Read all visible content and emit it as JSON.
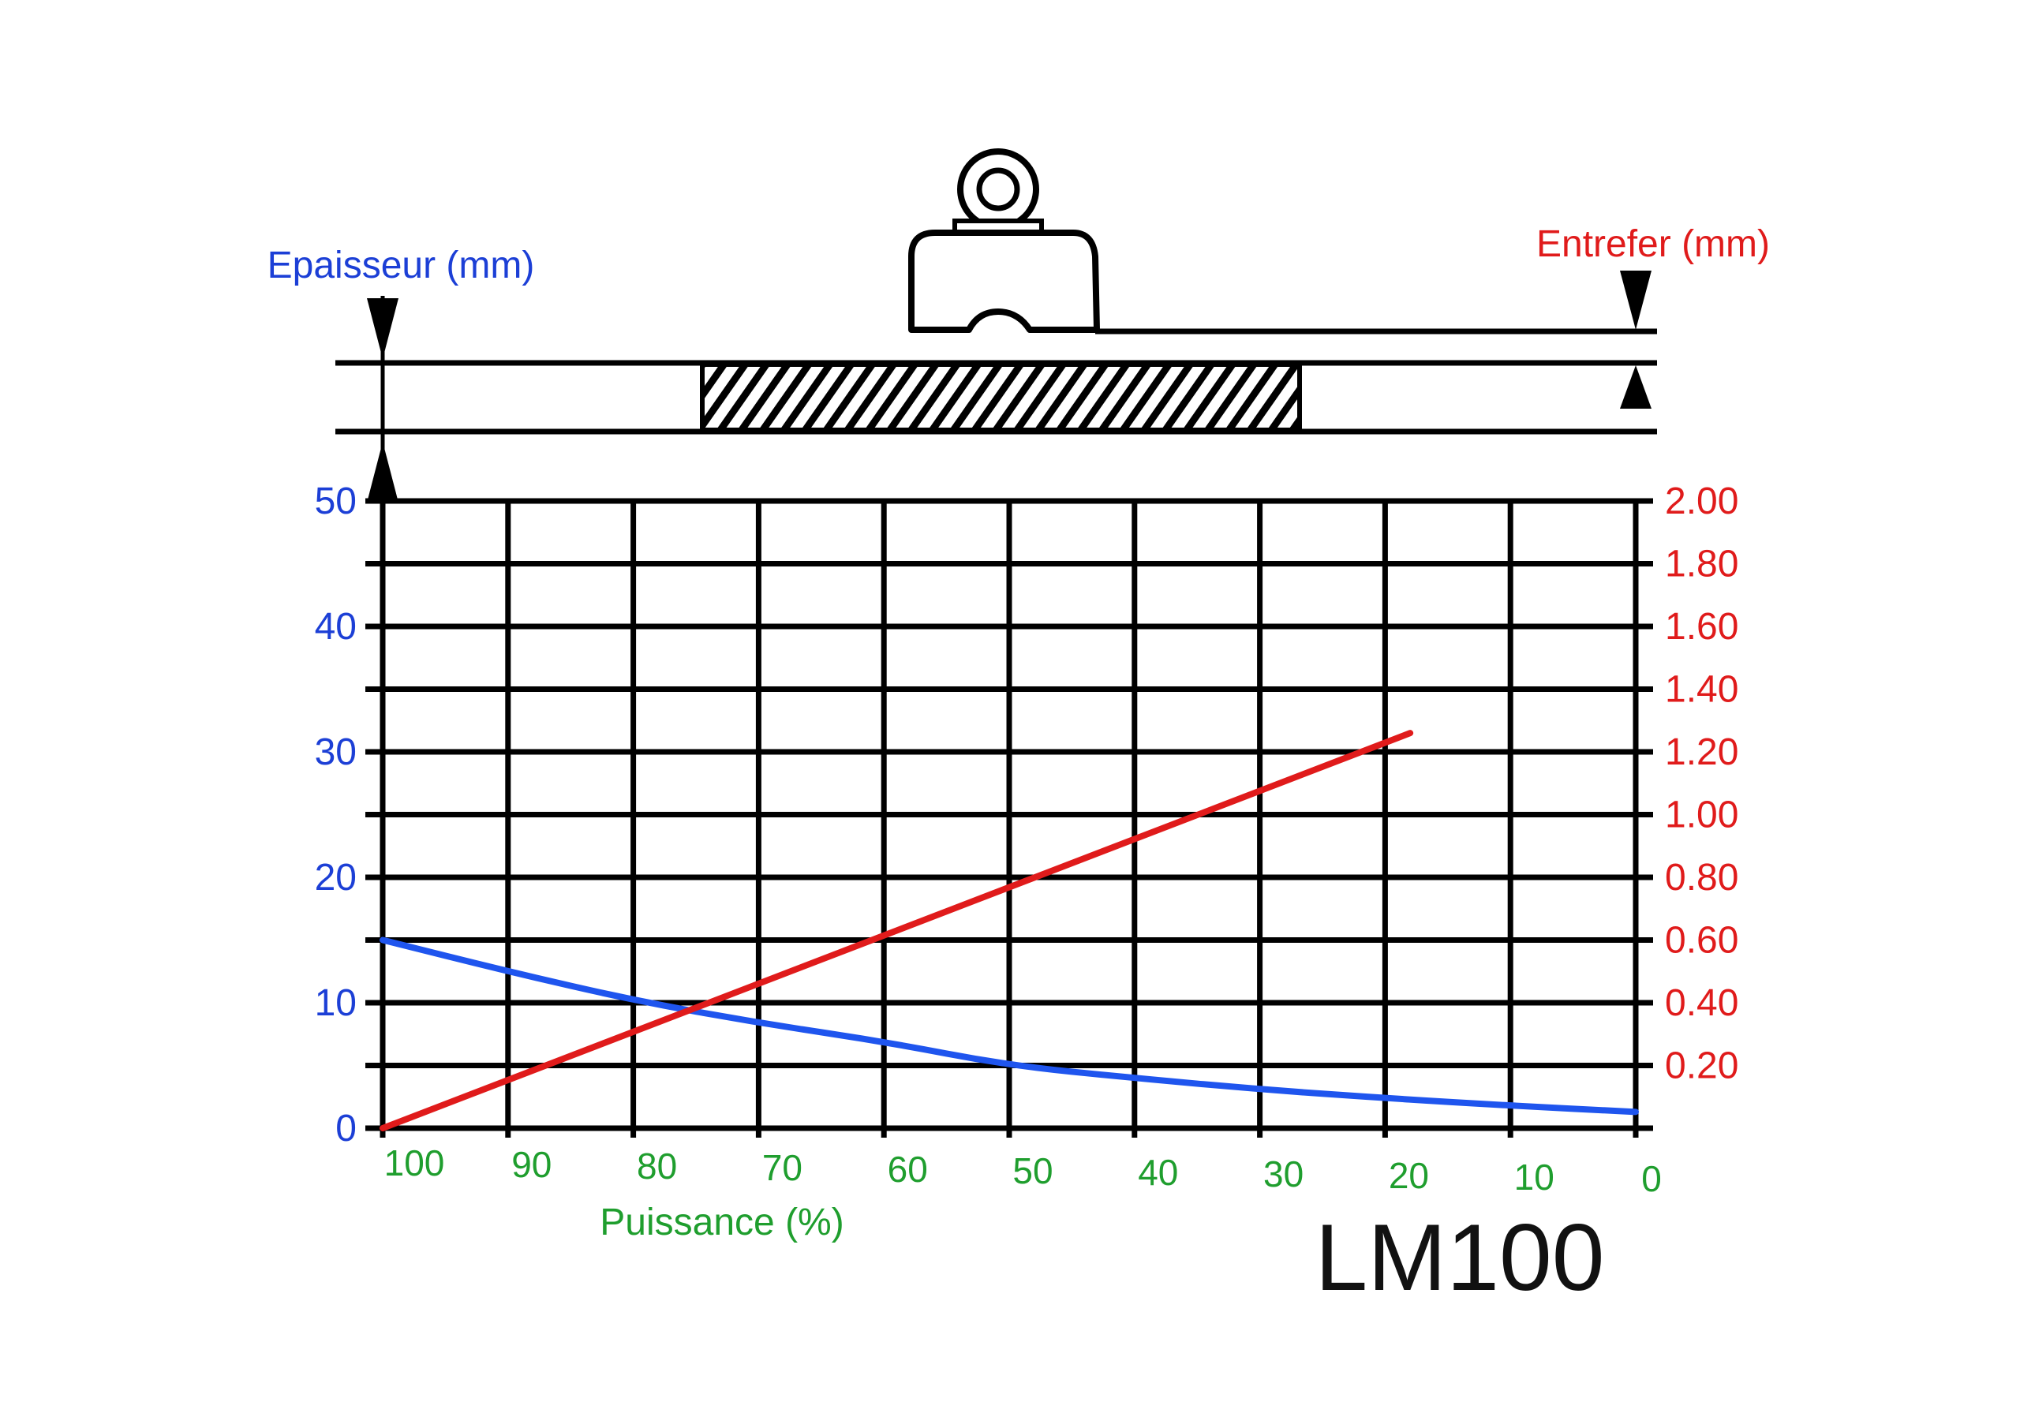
{
  "chart_data": {
    "type": "line",
    "title": "LM100",
    "colors": {
      "left": "#1c3fd6",
      "right": "#e01b1b",
      "x": "#1f9e2e",
      "grid": "#000000"
    },
    "xlabel": "Puissance (%)",
    "x_ticks": [
      "100",
      "90",
      "80",
      "70",
      "60",
      "50",
      "40",
      "30",
      "20",
      "10",
      "0"
    ],
    "xlim": [
      100,
      0
    ],
    "y_left": {
      "label": "Epaisseur (mm)",
      "ticks": [
        "0",
        "10",
        "20",
        "30",
        "40",
        "50"
      ],
      "ylim": [
        0,
        50
      ]
    },
    "y_right": {
      "label": "Entrefer (mm)",
      "ticks": [
        "0.20",
        "0.40",
        "0.60",
        "0.80",
        "1.00",
        "1.20",
        "1.40",
        "1.60",
        "1.80",
        "2.00"
      ],
      "ylim": [
        0,
        2.0
      ]
    },
    "series": [
      {
        "axis": "left",
        "color": "#1f55ee",
        "x": [
          100,
          90,
          80,
          70,
          60,
          50,
          40,
          30,
          20,
          10,
          0
        ],
        "y": [
          15.0,
          12.5,
          10.2,
          8.4,
          6.9,
          5.0,
          4.0,
          3.1,
          2.4,
          1.8,
          1.3
        ]
      },
      {
        "axis": "right",
        "color": "#e01b1b",
        "x": [
          100,
          18
        ],
        "y": [
          0.0,
          1.26
        ]
      }
    ]
  }
}
